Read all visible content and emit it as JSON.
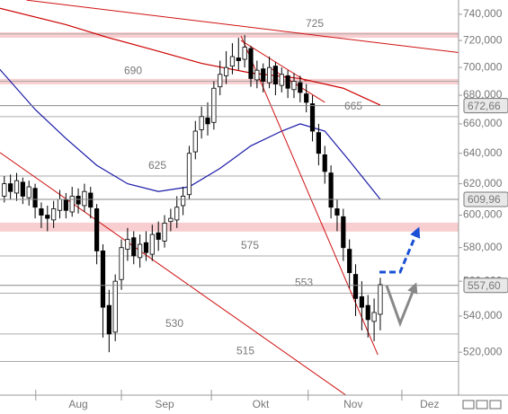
{
  "chart_data": {
    "type": "candlestick",
    "log_scale": true,
    "ylim": [
      497.2,
      751.1
    ],
    "yticks": [
      {
        "value": 520,
        "label": "520,000"
      },
      {
        "value": 540,
        "label": "540,000"
      },
      {
        "value": 560,
        "label": "560,000"
      },
      {
        "value": 580,
        "label": "580,000"
      },
      {
        "value": 600,
        "label": "600,000"
      },
      {
        "value": 620,
        "label": "620,000"
      },
      {
        "value": 640,
        "label": "640,000"
      },
      {
        "value": 660,
        "label": "660,000"
      },
      {
        "value": 680,
        "label": "680,000"
      },
      {
        "value": 700,
        "label": "700,000"
      },
      {
        "value": 720,
        "label": "720,000"
      },
      {
        "value": 740,
        "label": "740,000"
      }
    ],
    "xlim": [
      -0.7,
      73.7
    ],
    "xticks": [
      {
        "value": 12,
        "label": "Aug"
      },
      {
        "value": 26,
        "label": "Sep"
      },
      {
        "value": 41.6,
        "label": "Okt"
      },
      {
        "value": 56.6,
        "label": "Nov"
      },
      {
        "value": 69,
        "label": "Dez"
      }
    ],
    "month_starts": [
      5.1,
      19,
      33.6,
      49.3,
      64.5
    ],
    "open": [
      612,
      620,
      614,
      621,
      611,
      617,
      604,
      600,
      597,
      603,
      610,
      602,
      612,
      606,
      614,
      604,
      578,
      546,
      531,
      561,
      579,
      586,
      574,
      583,
      576,
      589,
      584,
      596,
      597,
      606,
      613,
      641,
      656,
      664,
      661,
      686,
      694,
      701,
      707,
      706,
      714,
      691,
      699,
      689,
      701,
      687,
      694,
      684,
      689,
      681,
      674,
      654,
      639,
      627,
      604,
      599,
      579,
      564,
      551,
      546,
      537,
      541
    ],
    "high": [
      625,
      626,
      627,
      624,
      622,
      620,
      608,
      606,
      609,
      616,
      614,
      618,
      617,
      620,
      618,
      607,
      582,
      555,
      564,
      585,
      592,
      590,
      588,
      590,
      594,
      596,
      600,
      604,
      612,
      618,
      645,
      662,
      672,
      675,
      690,
      705,
      712,
      718,
      722,
      724,
      716,
      705,
      703,
      708,
      704,
      700,
      698,
      696,
      694,
      688,
      680,
      660,
      645,
      632,
      610,
      604,
      585,
      570,
      560,
      552,
      550,
      562
    ],
    "low": [
      608,
      610,
      609,
      607,
      606,
      598,
      592,
      590,
      592,
      598,
      598,
      599,
      601,
      602,
      598,
      570,
      528,
      520,
      526,
      555,
      572,
      570,
      568,
      572,
      572,
      578,
      580,
      590,
      592,
      600,
      610,
      636,
      650,
      652,
      656,
      680,
      688,
      695,
      698,
      700,
      686,
      685,
      682,
      685,
      680,
      682,
      678,
      678,
      675,
      668,
      648,
      632,
      620,
      598,
      590,
      572,
      556,
      540,
      532,
      528,
      526,
      532
    ],
    "close": [
      620,
      615,
      622,
      612,
      618,
      605,
      600,
      598,
      604,
      610,
      603,
      612,
      607,
      615,
      605,
      578,
      545,
      530,
      560,
      580,
      585,
      575,
      582,
      577,
      588,
      585,
      595,
      598,
      605,
      612,
      640,
      655,
      665,
      660,
      685,
      695,
      700,
      708,
      705,
      715,
      692,
      698,
      690,
      700,
      688,
      695,
      685,
      690,
      682,
      675,
      655,
      640,
      628,
      605,
      600,
      580,
      565,
      550,
      545,
      538,
      542,
      558
    ],
    "moving_averages": [
      {
        "color": "#cc0000",
        "x": [
          -1,
          10,
          17,
          25,
          32,
          40,
          48,
          55,
          61
        ],
        "values": [
          745,
          732,
          722,
          712,
          703,
          696,
          692,
          685,
          673
        ]
      },
      {
        "color": "#1a1aa8",
        "x": [
          -1,
          5,
          10,
          15,
          20,
          25,
          30,
          35,
          40,
          45,
          48,
          52,
          56,
          61
        ],
        "values": [
          700,
          670,
          650,
          632,
          620,
          615,
          618,
          630,
          645,
          655,
          660,
          655,
          635,
          610
        ]
      }
    ],
    "trend_lines": [
      {
        "x": [
          3.6,
          73.7
        ],
        "values": [
          751,
          711
        ]
      },
      {
        "x": [
          -0.7,
          55.5
        ],
        "values": [
          640.5,
          497
        ]
      },
      {
        "x": [
          38.4,
          60.6
        ],
        "values": [
          723.5,
          518.6
        ]
      },
      {
        "x": [
          38.4,
          49.0
        ],
        "values": [
          720,
          690
        ]
      },
      {
        "x": [
          43.0,
          52.0
        ],
        "values": [
          700,
          675
        ]
      }
    ],
    "bands": [
      [
        722.1,
        726.2
      ],
      [
        687.8,
        691.7
      ],
      [
        589.8,
        595.3
      ]
    ],
    "levels": [
      {
        "value": 725,
        "label": "725"
      },
      {
        "value": 690,
        "label": "690"
      },
      {
        "value": 665,
        "label": "665"
      },
      {
        "value": 625,
        "label": "625"
      },
      {
        "value": 575,
        "label": "575"
      },
      {
        "value": 553,
        "label": "553"
      },
      {
        "value": 530,
        "label": "530"
      },
      {
        "value": 515,
        "label": "515"
      }
    ],
    "price_markers": [
      {
        "value": 672.66,
        "label": "672,66"
      },
      {
        "value": 609.96,
        "label": "609,96"
      },
      {
        "value": 557.6,
        "label": "557,60"
      }
    ]
  }
}
